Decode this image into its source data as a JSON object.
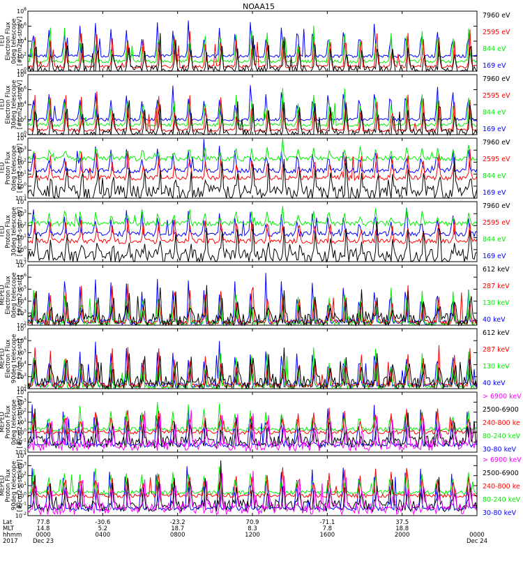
{
  "title": "NOAA15",
  "colors": {
    "black": "#000000",
    "red": "#ff0000",
    "green": "#00ee00",
    "blue": "#0000ff",
    "magenta": "#ff00ff"
  },
  "chart_data": [
    {
      "type": "line",
      "ylabel": [
        "TED",
        "Electron Flux",
        "0deg telescope",
        "[#/cm2-s-str-eV]"
      ],
      "y_scale": "log",
      "ylim": [
        1,
        100000000
      ],
      "ytick_exponents": [
        0,
        2,
        4,
        6,
        8
      ],
      "baselines": [
        1.5,
        4,
        20,
        100
      ],
      "series": [
        {
          "name": "7960 eV",
          "color": "black"
        },
        {
          "name": "2595 eV",
          "color": "red"
        },
        {
          "name": "844 eV",
          "color": "green"
        },
        {
          "name": "169 eV",
          "color": "blue"
        }
      ]
    },
    {
      "type": "line",
      "ylabel": [
        "TED",
        "Electron Flux",
        "30deg telescope",
        "[#/cm2-s-str-eV]"
      ],
      "y_scale": "log",
      "ylim": [
        1,
        100000000
      ],
      "ytick_exponents": [
        0,
        2,
        4,
        6,
        8
      ],
      "baselines": [
        1.5,
        4,
        20,
        100
      ],
      "series": [
        {
          "name": "7960 eV",
          "color": "black"
        },
        {
          "name": "2595 eV",
          "color": "red"
        },
        {
          "name": "844 eV",
          "color": "green"
        },
        {
          "name": "169 eV",
          "color": "blue"
        }
      ]
    },
    {
      "type": "line",
      "ylabel": [
        "TED",
        "Proton Flux",
        "0deg telescope",
        "[#/cm2-s-str-eV]"
      ],
      "y_scale": "log",
      "ylim": [
        0.1,
        10000
      ],
      "ytick_exponents": [
        -1,
        0,
        1,
        2,
        3,
        4
      ],
      "baselines": [
        0.3,
        5,
        200,
        20
      ],
      "series": [
        {
          "name": "7960 eV",
          "color": "black"
        },
        {
          "name": "2595 eV",
          "color": "red"
        },
        {
          "name": "844 eV",
          "color": "green"
        },
        {
          "name": "169 eV",
          "color": "blue"
        }
      ]
    },
    {
      "type": "line",
      "ylabel": [
        "TED",
        "Proton Flux",
        "30deg telescope",
        "[#/cm2-s-str-eV]"
      ],
      "y_scale": "log",
      "ylim": [
        0.1,
        10000
      ],
      "ytick_exponents": [
        -1,
        0,
        1,
        2,
        3,
        4
      ],
      "baselines": [
        0.3,
        5,
        150,
        20
      ],
      "series": [
        {
          "name": "7960 eV",
          "color": "black"
        },
        {
          "name": "2595 eV",
          "color": "red"
        },
        {
          "name": "844 eV",
          "color": "green"
        },
        {
          "name": "169 eV",
          "color": "blue"
        }
      ]
    },
    {
      "type": "line",
      "ylabel": [
        "MEPED",
        "Electron Flux",
        "0deg telescope",
        "[#/cm2-s-str]"
      ],
      "y_scale": "log",
      "ylim": [
        100,
        10000000
      ],
      "ytick_exponents": [
        2,
        3,
        4,
        5,
        6,
        7
      ],
      "baselines": [
        250,
        180,
        150,
        180
      ],
      "series": [
        {
          "name": "612 keV",
          "color": "black"
        },
        {
          "name": "287 keV",
          "color": "red"
        },
        {
          "name": "130 keV",
          "color": "green"
        },
        {
          "name": "40 keV",
          "color": "blue"
        }
      ]
    },
    {
      "type": "line",
      "ylabel": [
        "MEPED",
        "Electron Flux",
        "90deg telescope",
        "[#/cm2-s-str]"
      ],
      "y_scale": "log",
      "ylim": [
        100,
        10000000
      ],
      "ytick_exponents": [
        2,
        3,
        4,
        5,
        6,
        7
      ],
      "baselines": [
        300,
        200,
        150,
        200
      ],
      "series": [
        {
          "name": "612 keV",
          "color": "black"
        },
        {
          "name": "287 keV",
          "color": "red"
        },
        {
          "name": "130 keV",
          "color": "green"
        },
        {
          "name": "40 keV",
          "color": "blue"
        }
      ]
    },
    {
      "type": "line",
      "ylabel": [
        "MEPED",
        "Proton Flux",
        "0deg telescope",
        "[#/cm2-s-str-keV]"
      ],
      "y_scale": "log",
      "ylim": [
        0.01,
        10000
      ],
      "ytick_exponents": [
        -2,
        -1,
        0,
        1,
        2,
        3,
        4
      ],
      "baselines": [
        0.05,
        0.1,
        1,
        2,
        0.05
      ],
      "series": [
        {
          "name": "> 6900 keV",
          "color": "magenta"
        },
        {
          "name": "2500-6900",
          "color": "black"
        },
        {
          "name": "240-800 ke",
          "color": "red"
        },
        {
          "name": "80-240 keV",
          "color": "green"
        },
        {
          "name": "30-80 keV",
          "color": "blue"
        }
      ]
    },
    {
      "type": "line",
      "ylabel": [
        "MEPED",
        "Proton Flux",
        "90deg telescope",
        "[#/cm2-s-str-keV]"
      ],
      "y_scale": "log",
      "ylim": [
        0.01,
        10000
      ],
      "ytick_exponents": [
        -2,
        -1,
        0,
        1,
        2,
        3,
        4
      ],
      "baselines": [
        0.05,
        0.1,
        1,
        2,
        0.05
      ],
      "series": [
        {
          "name": "> 6900 keV",
          "color": "magenta"
        },
        {
          "name": "2500-6900",
          "color": "black"
        },
        {
          "name": "240-800 ke",
          "color": "red"
        },
        {
          "name": "80-240 keV",
          "color": "green"
        },
        {
          "name": "30-80 keV",
          "color": "blue"
        }
      ]
    }
  ],
  "x_axis": {
    "row_labels": [
      "Lat",
      "MLT",
      "hhmm",
      "2017"
    ],
    "ticks": [
      {
        "hhmm": "0000",
        "lat": "77.8",
        "mlt": "14.8",
        "date": "Dec 23"
      },
      {
        "hhmm": "0400",
        "lat": "-30.6",
        "mlt": "5.2",
        "date": ""
      },
      {
        "hhmm": "0800",
        "lat": "-23.2",
        "mlt": "18.7",
        "date": ""
      },
      {
        "hhmm": "1200",
        "lat": "70.9",
        "mlt": "8.3",
        "date": ""
      },
      {
        "hhmm": "1600",
        "lat": "-71.1",
        "mlt": "7.8",
        "date": ""
      },
      {
        "hhmm": "2000",
        "lat": "37.5",
        "mlt": "18.8",
        "date": ""
      },
      {
        "hhmm": "0000",
        "lat": "",
        "mlt": "",
        "date": "Dec 24"
      }
    ]
  }
}
